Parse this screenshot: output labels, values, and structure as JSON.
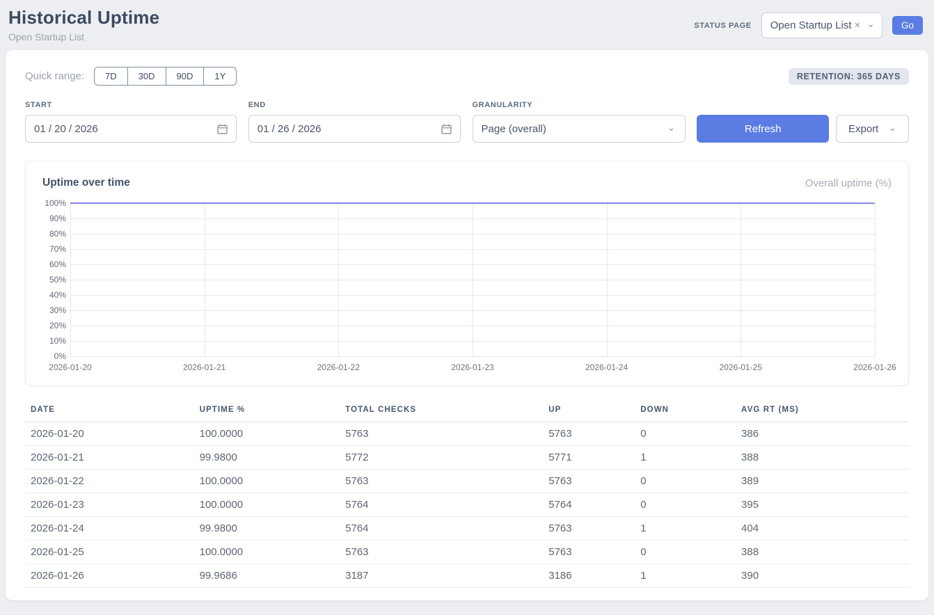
{
  "header": {
    "title": "Historical Uptime",
    "subtitle": "Open Startup List",
    "status_page_label": "STATUS PAGE",
    "status_page_value": "Open Startup List",
    "clear_icon": "×",
    "chevron_icon": "⌄",
    "go_label": "Go"
  },
  "controls": {
    "quick_range_label": "Quick range:",
    "quick_ranges": [
      "7D",
      "30D",
      "90D",
      "1Y"
    ],
    "retention_badge": "RETENTION: 365 DAYS",
    "start_label": "START",
    "start_value": "01 / 20 / 2026",
    "end_label": "END",
    "end_value": "01 / 26 / 2026",
    "granularity_label": "GRANULARITY",
    "granularity_value": "Page (overall)",
    "refresh_label": "Refresh",
    "export_label": "Export"
  },
  "chart_data": {
    "type": "line",
    "title": "Uptime over time",
    "legend": "Overall uptime (%)",
    "legend_position": "top-right",
    "grid": true,
    "x": [
      "2026-01-20",
      "2026-01-21",
      "2026-01-22",
      "2026-01-23",
      "2026-01-24",
      "2026-01-25",
      "2026-01-26"
    ],
    "series": [
      {
        "name": "Overall uptime (%)",
        "values": [
          100.0,
          99.98,
          100.0,
          100.0,
          99.98,
          100.0,
          99.9686
        ]
      }
    ],
    "ylim": [
      0,
      100
    ],
    "y_ticks": [
      "0%",
      "10%",
      "20%",
      "30%",
      "40%",
      "50%",
      "60%",
      "70%",
      "80%",
      "90%",
      "100%"
    ],
    "xlabel": "",
    "ylabel": "",
    "line_color": "#8084e6"
  },
  "table": {
    "columns": [
      "DATE",
      "UPTIME %",
      "TOTAL CHECKS",
      "UP",
      "DOWN",
      "AVG RT (MS)"
    ],
    "rows": [
      [
        "2026-01-20",
        "100.0000",
        "5763",
        "5763",
        "0",
        "386"
      ],
      [
        "2026-01-21",
        "99.9800",
        "5772",
        "5771",
        "1",
        "388"
      ],
      [
        "2026-01-22",
        "100.0000",
        "5763",
        "5763",
        "0",
        "389"
      ],
      [
        "2026-01-23",
        "100.0000",
        "5764",
        "5764",
        "0",
        "395"
      ],
      [
        "2026-01-24",
        "99.9800",
        "5764",
        "5763",
        "1",
        "404"
      ],
      [
        "2026-01-25",
        "100.0000",
        "5763",
        "5763",
        "0",
        "388"
      ],
      [
        "2026-01-26",
        "99.9686",
        "3187",
        "3186",
        "1",
        "390"
      ]
    ]
  },
  "colors": {
    "accent_blue": "#5b7ce2",
    "chart_line": "#8084e6",
    "badge_bg": "#e3e7ed",
    "page_bg": "#edeef1"
  }
}
